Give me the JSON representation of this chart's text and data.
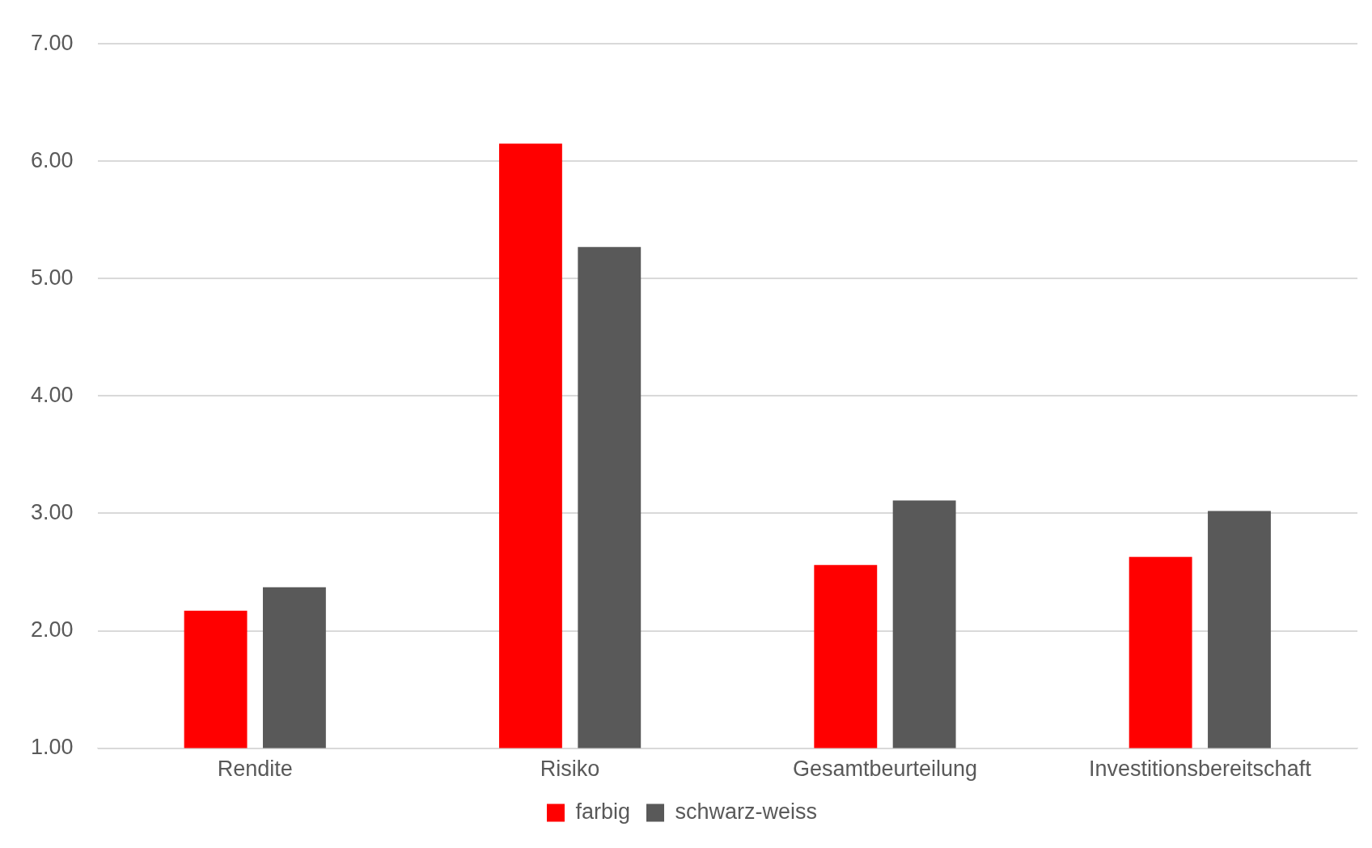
{
  "chart_data": {
    "type": "bar",
    "categories": [
      "Rendite",
      "Risiko",
      "Gesamtbeurteilung",
      "Investitionsbereitschaft"
    ],
    "series": [
      {
        "name": "farbig",
        "color": "#ff0000",
        "values": [
          2.17,
          6.15,
          2.56,
          2.63
        ]
      },
      {
        "name": "schwarz-weiss",
        "color": "#595959",
        "values": [
          2.37,
          5.27,
          3.11,
          3.02
        ]
      }
    ],
    "ylim": [
      1,
      7
    ],
    "yticks": [
      {
        "value": 1,
        "label": "1.00"
      },
      {
        "value": 2,
        "label": "2.00"
      },
      {
        "value": 3,
        "label": "3.00"
      },
      {
        "value": 4,
        "label": "4.00"
      },
      {
        "value": 5,
        "label": "5.00"
      },
      {
        "value": 6,
        "label": "6.00"
      },
      {
        "value": 7,
        "label": "7.00"
      }
    ],
    "grid": "y",
    "legend": "bottom"
  }
}
